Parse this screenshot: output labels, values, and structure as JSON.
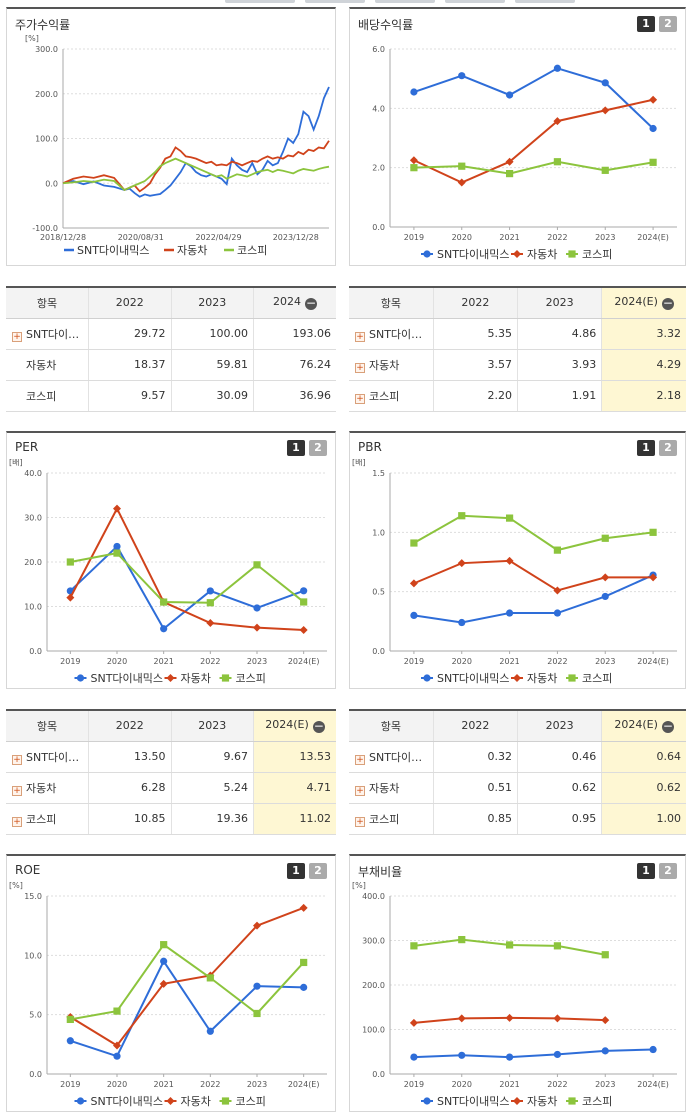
{
  "colors": {
    "snt": "#2e6dd8",
    "auto": "#d0431b",
    "kospi": "#8cc43d"
  },
  "legend": [
    "SNT다이내믹스",
    "자동차",
    "코스피"
  ],
  "panels": {
    "stock": {
      "title": "주가수익률"
    },
    "dividend": {
      "title": "배당수익률",
      "btn1": "1",
      "btn2": "2"
    },
    "per": {
      "title": "PER",
      "btn1": "1",
      "btn2": "2"
    },
    "pbr": {
      "title": "PBR",
      "btn1": "1",
      "btn2": "2"
    },
    "roe": {
      "title": "ROE",
      "btn1": "1",
      "btn2": "2"
    },
    "debt": {
      "title": "부채비율",
      "btn1": "1",
      "btn2": "2"
    }
  },
  "tables": {
    "stock": {
      "headers": [
        "항목",
        "2022",
        "2023",
        "2024"
      ],
      "rows": [
        {
          "name": "SNT다이…",
          "plus": true,
          "v": [
            "29.72",
            "100.00",
            "193.06"
          ]
        },
        {
          "name": "자동차",
          "plus": false,
          "v": [
            "18.37",
            "59.81",
            "76.24"
          ]
        },
        {
          "name": "코스피",
          "plus": false,
          "v": [
            "9.57",
            "30.09",
            "36.96"
          ]
        }
      ]
    },
    "dividend": {
      "headers": [
        "항목",
        "2022",
        "2023",
        "2024(E)"
      ],
      "rows": [
        {
          "name": "SNT다이…",
          "plus": true,
          "v": [
            "5.35",
            "4.86",
            "3.32"
          ]
        },
        {
          "name": "자동차",
          "plus": true,
          "v": [
            "3.57",
            "3.93",
            "4.29"
          ]
        },
        {
          "name": "코스피",
          "plus": true,
          "v": [
            "2.20",
            "1.91",
            "2.18"
          ]
        }
      ]
    },
    "per": {
      "headers": [
        "항목",
        "2022",
        "2023",
        "2024(E)"
      ],
      "rows": [
        {
          "name": "SNT다이…",
          "plus": true,
          "v": [
            "13.50",
            "9.67",
            "13.53"
          ]
        },
        {
          "name": "자동차",
          "plus": true,
          "v": [
            "6.28",
            "5.24",
            "4.71"
          ]
        },
        {
          "name": "코스피",
          "plus": true,
          "v": [
            "10.85",
            "19.36",
            "11.02"
          ]
        }
      ]
    },
    "pbr": {
      "headers": [
        "항목",
        "2022",
        "2023",
        "2024(E)"
      ],
      "rows": [
        {
          "name": "SNT다이…",
          "plus": true,
          "v": [
            "0.32",
            "0.46",
            "0.64"
          ]
        },
        {
          "name": "자동차",
          "plus": true,
          "v": [
            "0.51",
            "0.62",
            "0.62"
          ]
        },
        {
          "name": "코스피",
          "plus": true,
          "v": [
            "0.85",
            "0.95",
            "1.00"
          ]
        }
      ]
    }
  },
  "chart_data": [
    {
      "id": "stock",
      "type": "line",
      "unit": "[%]",
      "ylim": [
        -100,
        300
      ],
      "yticks": [
        "300.0",
        "200.0",
        "100.0",
        "0.0",
        "-100.0"
      ],
      "xlabels": [
        "2018/12/28",
        "2020/08/31",
        "2022/04/29",
        "2023/12/28"
      ],
      "x_range": [
        "2018-12-28",
        "2024-06-28"
      ],
      "series": [
        {
          "name": "SNT다이내믹스",
          "points": [
            [
              0,
              0
            ],
            [
              2,
              5
            ],
            [
              4,
              -2
            ],
            [
              6,
              4
            ],
            [
              8,
              -5
            ],
            [
              10,
              -8
            ],
            [
              12,
              -15
            ],
            [
              13,
              -12
            ],
            [
              14,
              -22
            ],
            [
              15,
              -30
            ],
            [
              16,
              -25
            ],
            [
              17,
              -28
            ],
            [
              18,
              -26
            ],
            [
              19,
              -24
            ],
            [
              20,
              -15
            ],
            [
              21,
              -5
            ],
            [
              22,
              10
            ],
            [
              23,
              25
            ],
            [
              24,
              45
            ],
            [
              25,
              38
            ],
            [
              26,
              25
            ],
            [
              27,
              18
            ],
            [
              28,
              15
            ],
            [
              29,
              20
            ],
            [
              30,
              15
            ],
            [
              31,
              10
            ],
            [
              32,
              -2
            ],
            [
              33,
              55
            ],
            [
              34,
              40
            ],
            [
              35,
              30
            ],
            [
              36,
              25
            ],
            [
              37,
              45
            ],
            [
              38,
              20
            ],
            [
              39,
              30
            ],
            [
              40,
              50
            ],
            [
              41,
              40
            ],
            [
              42,
              45
            ],
            [
              43,
              70
            ],
            [
              44,
              100
            ],
            [
              45,
              90
            ],
            [
              46,
              110
            ],
            [
              47,
              160
            ],
            [
              48,
              150
            ],
            [
              49,
              120
            ],
            [
              50,
              150
            ],
            [
              51,
              190
            ],
            [
              52,
              215
            ]
          ]
        },
        {
          "name": "자동차",
          "points": [
            [
              0,
              0
            ],
            [
              2,
              10
            ],
            [
              4,
              15
            ],
            [
              6,
              12
            ],
            [
              8,
              18
            ],
            [
              10,
              12
            ],
            [
              12,
              -15
            ],
            [
              13,
              -10
            ],
            [
              14,
              -5
            ],
            [
              15,
              -18
            ],
            [
              16,
              -10
            ],
            [
              17,
              0
            ],
            [
              18,
              20
            ],
            [
              19,
              35
            ],
            [
              20,
              55
            ],
            [
              21,
              60
            ],
            [
              22,
              80
            ],
            [
              23,
              72
            ],
            [
              24,
              60
            ],
            [
              25,
              58
            ],
            [
              26,
              55
            ],
            [
              27,
              50
            ],
            [
              28,
              45
            ],
            [
              29,
              48
            ],
            [
              30,
              40
            ],
            [
              31,
              42
            ],
            [
              32,
              40
            ],
            [
              33,
              48
            ],
            [
              34,
              45
            ],
            [
              35,
              40
            ],
            [
              36,
              45
            ],
            [
              37,
              50
            ],
            [
              38,
              48
            ],
            [
              39,
              55
            ],
            [
              40,
              60
            ],
            [
              41,
              55
            ],
            [
              42,
              58
            ],
            [
              43,
              55
            ],
            [
              44,
              62
            ],
            [
              45,
              60
            ],
            [
              46,
              70
            ],
            [
              47,
              65
            ],
            [
              48,
              75
            ],
            [
              49,
              72
            ],
            [
              50,
              80
            ],
            [
              51,
              78
            ],
            [
              52,
              95
            ]
          ]
        },
        {
          "name": "코스피",
          "points": [
            [
              0,
              0
            ],
            [
              2,
              2
            ],
            [
              4,
              5
            ],
            [
              6,
              3
            ],
            [
              8,
              8
            ],
            [
              10,
              5
            ],
            [
              12,
              -15
            ],
            [
              13,
              -10
            ],
            [
              14,
              -5
            ],
            [
              15,
              0
            ],
            [
              16,
              5
            ],
            [
              17,
              15
            ],
            [
              18,
              25
            ],
            [
              19,
              38
            ],
            [
              20,
              45
            ],
            [
              21,
              50
            ],
            [
              22,
              55
            ],
            [
              23,
              50
            ],
            [
              24,
              45
            ],
            [
              25,
              40
            ],
            [
              26,
              35
            ],
            [
              27,
              30
            ],
            [
              28,
              25
            ],
            [
              29,
              20
            ],
            [
              30,
              15
            ],
            [
              31,
              18
            ],
            [
              32,
              10
            ],
            [
              33,
              15
            ],
            [
              34,
              20
            ],
            [
              35,
              18
            ],
            [
              36,
              15
            ],
            [
              37,
              20
            ],
            [
              38,
              25
            ],
            [
              39,
              28
            ],
            [
              40,
              30
            ],
            [
              41,
              25
            ],
            [
              42,
              30
            ],
            [
              43,
              28
            ],
            [
              44,
              25
            ],
            [
              45,
              22
            ],
            [
              46,
              28
            ],
            [
              47,
              32
            ],
            [
              48,
              30
            ],
            [
              49,
              28
            ],
            [
              50,
              32
            ],
            [
              51,
              35
            ],
            [
              52,
              37
            ]
          ]
        }
      ]
    },
    {
      "id": "dividend",
      "type": "line",
      "unit": "",
      "ylim": [
        0,
        6
      ],
      "yticks": [
        "6.0",
        "4.0",
        "2.0",
        "0.0"
      ],
      "categories": [
        "2019",
        "2020",
        "2021",
        "2022",
        "2023",
        "2024(E)"
      ],
      "series": [
        {
          "name": "SNT다이내믹스",
          "values": [
            4.55,
            5.1,
            4.45,
            5.35,
            4.86,
            3.32
          ]
        },
        {
          "name": "자동차",
          "values": [
            2.25,
            1.5,
            2.2,
            3.57,
            3.93,
            4.29
          ]
        },
        {
          "name": "코스피",
          "values": [
            2.0,
            2.05,
            1.8,
            2.2,
            1.91,
            2.18
          ]
        }
      ]
    },
    {
      "id": "per",
      "type": "line",
      "unit": "[배]",
      "ylim": [
        0,
        40
      ],
      "yticks": [
        "40.0",
        "30.0",
        "20.0",
        "10.0",
        "0.0"
      ],
      "categories": [
        "2019",
        "2020",
        "2021",
        "2022",
        "2023",
        "2024(E)"
      ],
      "series": [
        {
          "name": "SNT다이내믹스",
          "values": [
            13.5,
            23.5,
            5.0,
            13.5,
            9.67,
            13.53
          ]
        },
        {
          "name": "자동차",
          "values": [
            12.0,
            32.0,
            11.0,
            6.28,
            5.24,
            4.71
          ]
        },
        {
          "name": "코스피",
          "values": [
            20.0,
            22.0,
            11.0,
            10.85,
            19.36,
            11.02
          ]
        }
      ]
    },
    {
      "id": "pbr",
      "type": "line",
      "unit": "[배]",
      "ylim": [
        0,
        1.5
      ],
      "yticks": [
        "1.5",
        "1.0",
        "0.5",
        "0.0"
      ],
      "categories": [
        "2019",
        "2020",
        "2021",
        "2022",
        "2023",
        "2024(E)"
      ],
      "series": [
        {
          "name": "SNT다이내믹스",
          "values": [
            0.3,
            0.24,
            0.32,
            0.32,
            0.46,
            0.64
          ]
        },
        {
          "name": "자동차",
          "values": [
            0.57,
            0.74,
            0.76,
            0.51,
            0.62,
            0.62
          ]
        },
        {
          "name": "코스피",
          "values": [
            0.91,
            1.14,
            1.12,
            0.85,
            0.95,
            1.0
          ]
        }
      ]
    },
    {
      "id": "roe",
      "type": "line",
      "unit": "[%]",
      "ylim": [
        0,
        15
      ],
      "yticks": [
        "15.0",
        "10.0",
        "5.0",
        "0.0"
      ],
      "categories": [
        "2019",
        "2020",
        "2021",
        "2022",
        "2023",
        "2024(E)"
      ],
      "series": [
        {
          "name": "SNT다이내믹스",
          "values": [
            2.8,
            1.5,
            9.5,
            3.6,
            7.4,
            7.3
          ]
        },
        {
          "name": "자동차",
          "values": [
            4.8,
            2.4,
            7.6,
            8.3,
            12.5,
            14.0
          ]
        },
        {
          "name": "코스피",
          "values": [
            4.6,
            5.3,
            10.9,
            8.1,
            5.1,
            9.4
          ]
        }
      ]
    },
    {
      "id": "debt",
      "type": "line",
      "unit": "[%]",
      "ylim": [
        0,
        400
      ],
      "yticks": [
        "400.0",
        "300.0",
        "200.0",
        "100.0",
        "0.0"
      ],
      "categories": [
        "2019",
        "2020",
        "2021",
        "2022",
        "2023",
        "2024(E)"
      ],
      "series": [
        {
          "name": "SNT다이내믹스",
          "values": [
            38,
            42,
            38,
            44,
            52,
            55
          ]
        },
        {
          "name": "자동차",
          "values": [
            115,
            125,
            126,
            125,
            121,
            null
          ]
        },
        {
          "name": "코스피",
          "values": [
            288,
            302,
            290,
            288,
            268,
            null
          ]
        }
      ]
    }
  ]
}
